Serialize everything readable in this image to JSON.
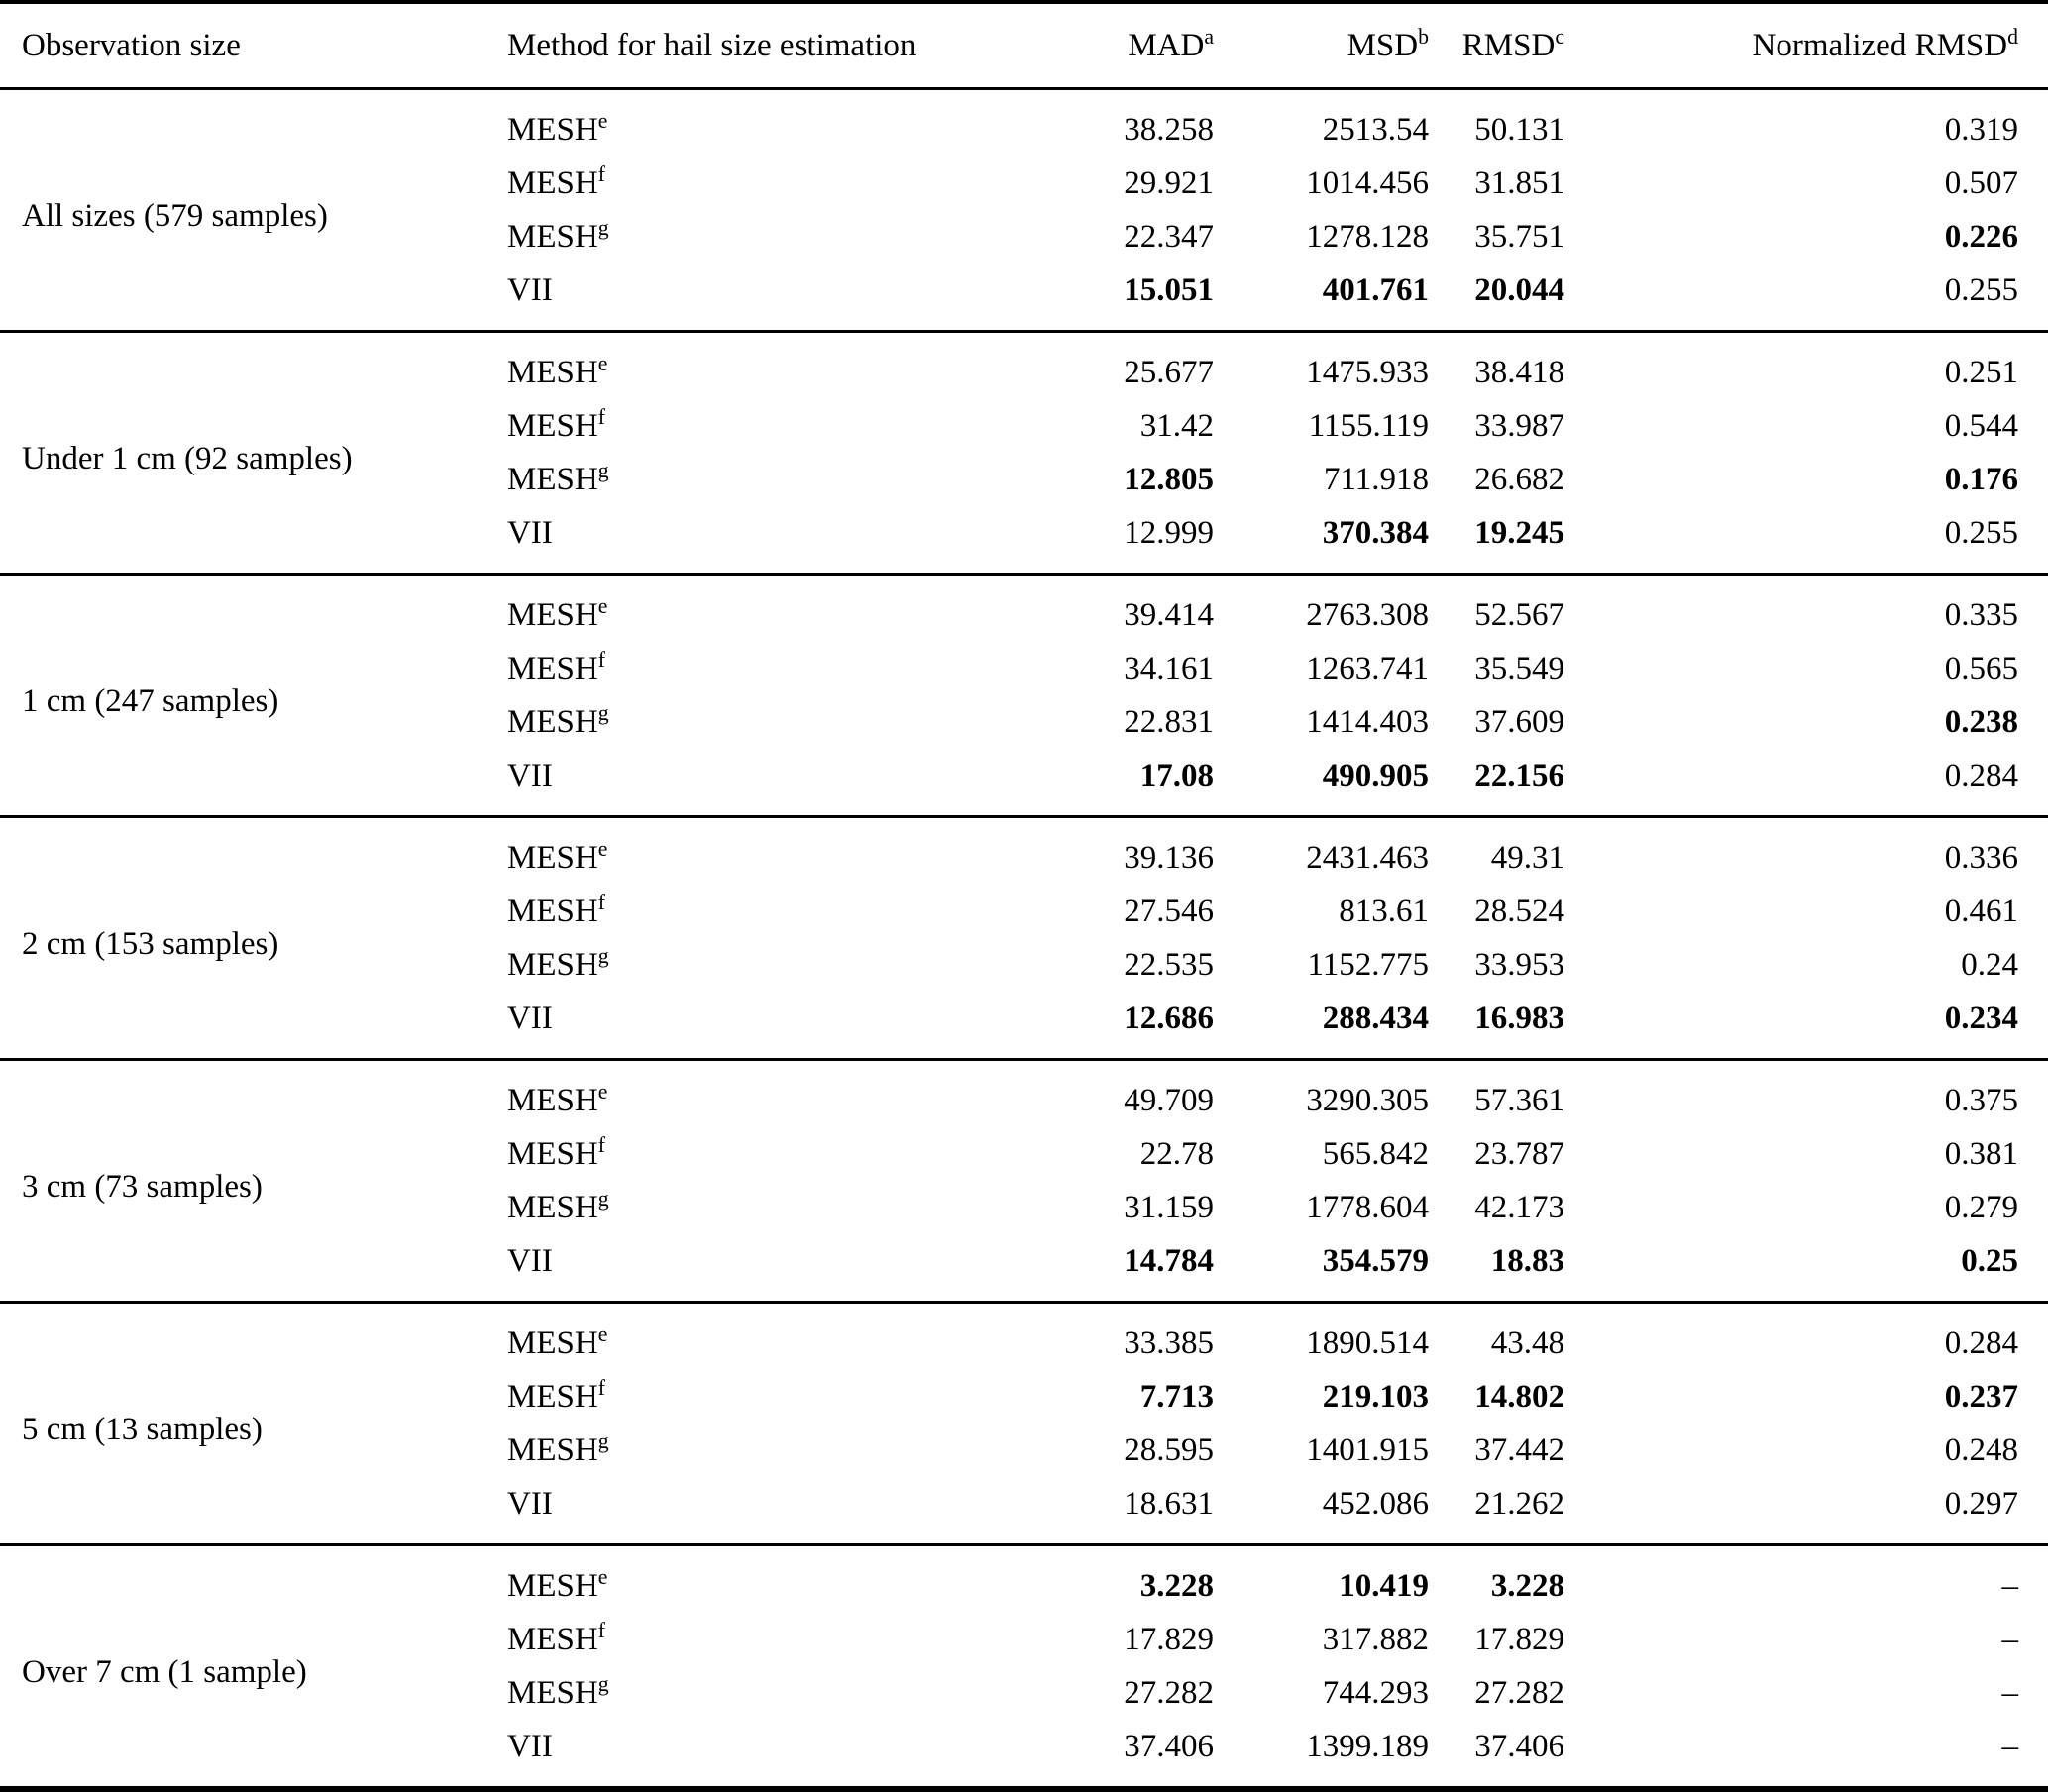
{
  "page": {
    "background_color": "#ffffff",
    "text_color": "#000000",
    "rule_color": "#000000"
  },
  "table": {
    "headers": [
      {
        "label": "Observation size",
        "sup": ""
      },
      {
        "label": "Method for hail size estimation",
        "sup": ""
      },
      {
        "label": "MAD",
        "sup": "a"
      },
      {
        "label": "MSD",
        "sup": "b"
      },
      {
        "label": "RMSD",
        "sup": "c"
      },
      {
        "label": "Normalized RMSD",
        "sup": "d"
      }
    ],
    "groups": [
      {
        "observation": "All sizes (579 samples)",
        "rows": [
          {
            "method": "MESH",
            "method_sup": "e",
            "cells": [
              {
                "value": "38.258",
                "bold": false
              },
              {
                "value": "2513.54",
                "bold": false
              },
              {
                "value": "50.131",
                "bold": false
              },
              {
                "value": "0.319",
                "bold": false
              }
            ]
          },
          {
            "method": "MESH",
            "method_sup": "f",
            "cells": [
              {
                "value": "29.921",
                "bold": false
              },
              {
                "value": "1014.456",
                "bold": false
              },
              {
                "value": "31.851",
                "bold": false
              },
              {
                "value": "0.507",
                "bold": false
              }
            ]
          },
          {
            "method": "MESH",
            "method_sup": "g",
            "cells": [
              {
                "value": "22.347",
                "bold": false
              },
              {
                "value": "1278.128",
                "bold": false
              },
              {
                "value": "35.751",
                "bold": false
              },
              {
                "value": "0.226",
                "bold": true
              }
            ]
          },
          {
            "method": "VII",
            "method_sup": "",
            "cells": [
              {
                "value": "15.051",
                "bold": true
              },
              {
                "value": "401.761",
                "bold": true
              },
              {
                "value": "20.044",
                "bold": true
              },
              {
                "value": "0.255",
                "bold": false
              }
            ]
          }
        ]
      },
      {
        "observation": "Under 1 cm (92 samples)",
        "rows": [
          {
            "method": "MESH",
            "method_sup": "e",
            "cells": [
              {
                "value": "25.677",
                "bold": false
              },
              {
                "value": "1475.933",
                "bold": false
              },
              {
                "value": "38.418",
                "bold": false
              },
              {
                "value": "0.251",
                "bold": false
              }
            ]
          },
          {
            "method": "MESH",
            "method_sup": "f",
            "cells": [
              {
                "value": "31.42",
                "bold": false
              },
              {
                "value": "1155.119",
                "bold": false
              },
              {
                "value": "33.987",
                "bold": false
              },
              {
                "value": "0.544",
                "bold": false
              }
            ]
          },
          {
            "method": "MESH",
            "method_sup": "g",
            "cells": [
              {
                "value": "12.805",
                "bold": true
              },
              {
                "value": "711.918",
                "bold": false
              },
              {
                "value": "26.682",
                "bold": false
              },
              {
                "value": "0.176",
                "bold": true
              }
            ]
          },
          {
            "method": "VII",
            "method_sup": "",
            "cells": [
              {
                "value": "12.999",
                "bold": false
              },
              {
                "value": "370.384",
                "bold": true
              },
              {
                "value": "19.245",
                "bold": true
              },
              {
                "value": "0.255",
                "bold": false
              }
            ]
          }
        ]
      },
      {
        "observation": "1 cm (247 samples)",
        "rows": [
          {
            "method": "MESH",
            "method_sup": "e",
            "cells": [
              {
                "value": "39.414",
                "bold": false
              },
              {
                "value": "2763.308",
                "bold": false
              },
              {
                "value": "52.567",
                "bold": false
              },
              {
                "value": "0.335",
                "bold": false
              }
            ]
          },
          {
            "method": "MESH",
            "method_sup": "f",
            "cells": [
              {
                "value": "34.161",
                "bold": false
              },
              {
                "value": "1263.741",
                "bold": false
              },
              {
                "value": "35.549",
                "bold": false
              },
              {
                "value": "0.565",
                "bold": false
              }
            ]
          },
          {
            "method": "MESH",
            "method_sup": "g",
            "cells": [
              {
                "value": "22.831",
                "bold": false
              },
              {
                "value": "1414.403",
                "bold": false
              },
              {
                "value": "37.609",
                "bold": false
              },
              {
                "value": "0.238",
                "bold": true
              }
            ]
          },
          {
            "method": "VII",
            "method_sup": "",
            "cells": [
              {
                "value": "17.08",
                "bold": true
              },
              {
                "value": "490.905",
                "bold": true
              },
              {
                "value": "22.156",
                "bold": true
              },
              {
                "value": "0.284",
                "bold": false
              }
            ]
          }
        ]
      },
      {
        "observation": "2 cm (153 samples)",
        "rows": [
          {
            "method": "MESH",
            "method_sup": "e",
            "cells": [
              {
                "value": "39.136",
                "bold": false
              },
              {
                "value": "2431.463",
                "bold": false
              },
              {
                "value": "49.31",
                "bold": false
              },
              {
                "value": "0.336",
                "bold": false
              }
            ]
          },
          {
            "method": "MESH",
            "method_sup": "f",
            "cells": [
              {
                "value": "27.546",
                "bold": false
              },
              {
                "value": "813.61",
                "bold": false
              },
              {
                "value": "28.524",
                "bold": false
              },
              {
                "value": "0.461",
                "bold": false
              }
            ]
          },
          {
            "method": "MESH",
            "method_sup": "g",
            "cells": [
              {
                "value": "22.535",
                "bold": false
              },
              {
                "value": "1152.775",
                "bold": false
              },
              {
                "value": "33.953",
                "bold": false
              },
              {
                "value": "0.24",
                "bold": false
              }
            ]
          },
          {
            "method": "VII",
            "method_sup": "",
            "cells": [
              {
                "value": "12.686",
                "bold": true
              },
              {
                "value": "288.434",
                "bold": true
              },
              {
                "value": "16.983",
                "bold": true
              },
              {
                "value": "0.234",
                "bold": true
              }
            ]
          }
        ]
      },
      {
        "observation": "3 cm (73 samples)",
        "rows": [
          {
            "method": "MESH",
            "method_sup": "e",
            "cells": [
              {
                "value": "49.709",
                "bold": false
              },
              {
                "value": "3290.305",
                "bold": false
              },
              {
                "value": "57.361",
                "bold": false
              },
              {
                "value": "0.375",
                "bold": false
              }
            ]
          },
          {
            "method": "MESH",
            "method_sup": "f",
            "cells": [
              {
                "value": "22.78",
                "bold": false
              },
              {
                "value": "565.842",
                "bold": false
              },
              {
                "value": "23.787",
                "bold": false
              },
              {
                "value": "0.381",
                "bold": false
              }
            ]
          },
          {
            "method": "MESH",
            "method_sup": "g",
            "cells": [
              {
                "value": "31.159",
                "bold": false
              },
              {
                "value": "1778.604",
                "bold": false
              },
              {
                "value": "42.173",
                "bold": false
              },
              {
                "value": "0.279",
                "bold": false
              }
            ]
          },
          {
            "method": "VII",
            "method_sup": "",
            "cells": [
              {
                "value": "14.784",
                "bold": true
              },
              {
                "value": "354.579",
                "bold": true
              },
              {
                "value": "18.83",
                "bold": true
              },
              {
                "value": "0.25",
                "bold": true
              }
            ]
          }
        ]
      },
      {
        "observation": "5 cm (13 samples)",
        "rows": [
          {
            "method": "MESH",
            "method_sup": "e",
            "cells": [
              {
                "value": "33.385",
                "bold": false
              },
              {
                "value": "1890.514",
                "bold": false
              },
              {
                "value": "43.48",
                "bold": false
              },
              {
                "value": "0.284",
                "bold": false
              }
            ]
          },
          {
            "method": "MESH",
            "method_sup": "f",
            "cells": [
              {
                "value": "7.713",
                "bold": true
              },
              {
                "value": "219.103",
                "bold": true
              },
              {
                "value": "14.802",
                "bold": true
              },
              {
                "value": "0.237",
                "bold": true
              }
            ]
          },
          {
            "method": "MESH",
            "method_sup": "g",
            "cells": [
              {
                "value": "28.595",
                "bold": false
              },
              {
                "value": "1401.915",
                "bold": false
              },
              {
                "value": "37.442",
                "bold": false
              },
              {
                "value": "0.248",
                "bold": false
              }
            ]
          },
          {
            "method": "VII",
            "method_sup": "",
            "cells": [
              {
                "value": "18.631",
                "bold": false
              },
              {
                "value": "452.086",
                "bold": false
              },
              {
                "value": "21.262",
                "bold": false
              },
              {
                "value": "0.297",
                "bold": false
              }
            ]
          }
        ]
      },
      {
        "observation": "Over 7 cm (1 sample)",
        "rows": [
          {
            "method": "MESH",
            "method_sup": "e",
            "cells": [
              {
                "value": "3.228",
                "bold": true
              },
              {
                "value": "10.419",
                "bold": true
              },
              {
                "value": "3.228",
                "bold": true
              },
              {
                "value": "–",
                "bold": false
              }
            ]
          },
          {
            "method": "MESH",
            "method_sup": "f",
            "cells": [
              {
                "value": "17.829",
                "bold": false
              },
              {
                "value": "317.882",
                "bold": false
              },
              {
                "value": "17.829",
                "bold": false
              },
              {
                "value": "–",
                "bold": false
              }
            ]
          },
          {
            "method": "MESH",
            "method_sup": "g",
            "cells": [
              {
                "value": "27.282",
                "bold": false
              },
              {
                "value": "744.293",
                "bold": false
              },
              {
                "value": "27.282",
                "bold": false
              },
              {
                "value": "–",
                "bold": false
              }
            ]
          },
          {
            "method": "VII",
            "method_sup": "",
            "cells": [
              {
                "value": "37.406",
                "bold": false
              },
              {
                "value": "1399.189",
                "bold": false
              },
              {
                "value": "37.406",
                "bold": false
              },
              {
                "value": "–",
                "bold": false
              }
            ]
          }
        ]
      }
    ]
  },
  "chart_data": {
    "type": "table",
    "title": "Hail size estimation method error statistics by observation size",
    "columns": [
      "Observation size",
      "Method for hail size estimation",
      "MAD",
      "MSD",
      "RMSD",
      "Normalized RMSD"
    ],
    "rows": [
      [
        "All sizes (579 samples)",
        "MESH e",
        38.258,
        2513.54,
        50.131,
        0.319
      ],
      [
        "All sizes (579 samples)",
        "MESH f",
        29.921,
        1014.456,
        31.851,
        0.507
      ],
      [
        "All sizes (579 samples)",
        "MESH g",
        22.347,
        1278.128,
        35.751,
        0.226
      ],
      [
        "All sizes (579 samples)",
        "VII",
        15.051,
        401.761,
        20.044,
        0.255
      ],
      [
        "Under 1 cm (92 samples)",
        "MESH e",
        25.677,
        1475.933,
        38.418,
        0.251
      ],
      [
        "Under 1 cm (92 samples)",
        "MESH f",
        31.42,
        1155.119,
        33.987,
        0.544
      ],
      [
        "Under 1 cm (92 samples)",
        "MESH g",
        12.805,
        711.918,
        26.682,
        0.176
      ],
      [
        "Under 1 cm (92 samples)",
        "VII",
        12.999,
        370.384,
        19.245,
        0.255
      ],
      [
        "1 cm (247 samples)",
        "MESH e",
        39.414,
        2763.308,
        52.567,
        0.335
      ],
      [
        "1 cm (247 samples)",
        "MESH f",
        34.161,
        1263.741,
        35.549,
        0.565
      ],
      [
        "1 cm (247 samples)",
        "MESH g",
        22.831,
        1414.403,
        37.609,
        0.238
      ],
      [
        "1 cm (247 samples)",
        "VII",
        17.08,
        490.905,
        22.156,
        0.284
      ],
      [
        "2 cm (153 samples)",
        "MESH e",
        39.136,
        2431.463,
        49.31,
        0.336
      ],
      [
        "2 cm (153 samples)",
        "MESH f",
        27.546,
        813.61,
        28.524,
        0.461
      ],
      [
        "2 cm (153 samples)",
        "MESH g",
        22.535,
        1152.775,
        33.953,
        0.24
      ],
      [
        "2 cm (153 samples)",
        "VII",
        12.686,
        288.434,
        16.983,
        0.234
      ],
      [
        "3 cm (73 samples)",
        "MESH e",
        49.709,
        3290.305,
        57.361,
        0.375
      ],
      [
        "3 cm (73 samples)",
        "MESH f",
        22.78,
        565.842,
        23.787,
        0.381
      ],
      [
        "3 cm (73 samples)",
        "MESH g",
        31.159,
        1778.604,
        42.173,
        0.279
      ],
      [
        "3 cm (73 samples)",
        "VII",
        14.784,
        354.579,
        18.83,
        0.25
      ],
      [
        "5 cm (13 samples)",
        "MESH e",
        33.385,
        1890.514,
        43.48,
        0.284
      ],
      [
        "5 cm (13 samples)",
        "MESH f",
        7.713,
        219.103,
        14.802,
        0.237
      ],
      [
        "5 cm (13 samples)",
        "MESH g",
        28.595,
        1401.915,
        37.442,
        0.248
      ],
      [
        "5 cm (13 samples)",
        "VII",
        18.631,
        452.086,
        21.262,
        0.297
      ],
      [
        "Over 7 cm (1 sample)",
        "MESH e",
        3.228,
        10.419,
        3.228,
        null
      ],
      [
        "Over 7 cm (1 sample)",
        "MESH f",
        17.829,
        317.882,
        17.829,
        null
      ],
      [
        "Over 7 cm (1 sample)",
        "MESH g",
        27.282,
        744.293,
        27.282,
        null
      ],
      [
        "Over 7 cm (1 sample)",
        "VII",
        37.406,
        1399.189,
        37.406,
        null
      ]
    ]
  }
}
